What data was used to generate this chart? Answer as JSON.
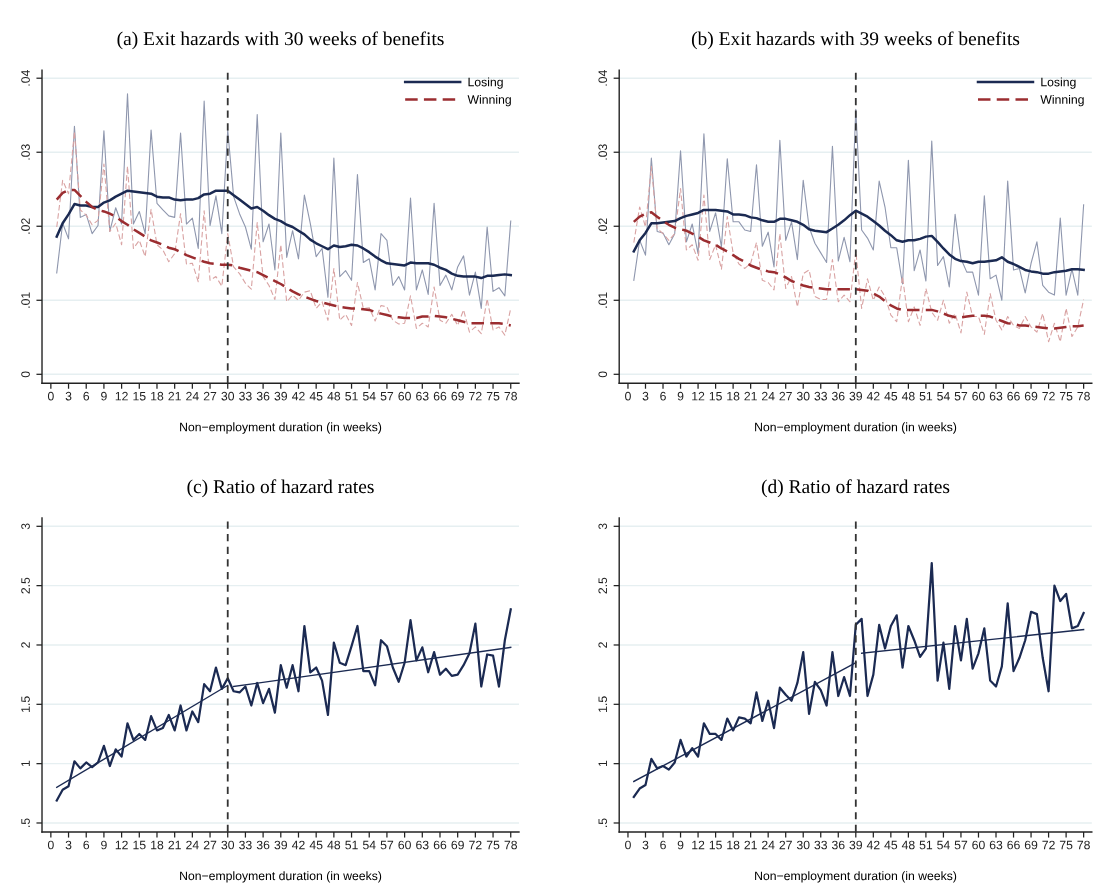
{
  "chart_data": [
    {
      "type": "line",
      "title": "(a) Exit hazards with 30 weeks of benefits",
      "xlabel": "Non−employment duration (in weeks)",
      "x": [
        1,
        2,
        3,
        4,
        5,
        6,
        7,
        8,
        9,
        10,
        11,
        12,
        13,
        14,
        15,
        16,
        17,
        18,
        19,
        20,
        21,
        22,
        23,
        24,
        25,
        26,
        27,
        28,
        29,
        30,
        31,
        32,
        33,
        34,
        35,
        36,
        37,
        38,
        39,
        40,
        41,
        42,
        43,
        44,
        45,
        46,
        47,
        48,
        49,
        50,
        51,
        52,
        53,
        54,
        55,
        56,
        57,
        58,
        59,
        60,
        61,
        62,
        63,
        64,
        65,
        66,
        67,
        68,
        69,
        70,
        71,
        72,
        73,
        74,
        75,
        76,
        77,
        78
      ],
      "xlim": [
        -1.5,
        79.4
      ],
      "xticks": [
        0,
        3,
        6,
        9,
        12,
        15,
        18,
        21,
        24,
        27,
        30,
        33,
        36,
        39,
        42,
        45,
        48,
        51,
        54,
        57,
        60,
        63,
        66,
        69,
        72,
        75,
        78
      ],
      "ylim": [
        -0.0012,
        0.0411
      ],
      "yticks": [
        0,
        {
          "value": 0.01,
          "label": ".01"
        },
        {
          "value": 0.02,
          "label": ".02"
        },
        {
          "value": 0.03,
          "label": ".03"
        },
        {
          "value": 0.04,
          "label": ".04"
        }
      ],
      "grid": "y",
      "legend": "top right",
      "ref_lines": [
        {
          "axis": "x",
          "value": 30,
          "color": "#333333",
          "line_style": "dashed"
        }
      ],
      "series": [
        {
          "color": "#8f97ae",
          "line_style": "solid",
          "values": [
            0.0137,
            0.0204,
            0.0183,
            0.0335,
            0.0212,
            0.0216,
            0.019,
            0.0201,
            0.0329,
            0.0193,
            0.0225,
            0.0203,
            0.0379,
            0.0203,
            0.022,
            0.019,
            0.033,
            0.0231,
            0.0222,
            0.0214,
            0.0212,
            0.0326,
            0.0203,
            0.0211,
            0.017,
            0.0369,
            0.0201,
            0.0241,
            0.019,
            0.033,
            0.024,
            0.0217,
            0.0199,
            0.0169,
            0.0351,
            0.0179,
            0.0203,
            0.0141,
            0.0326,
            0.0158,
            0.0194,
            0.0156,
            0.0242,
            0.0204,
            0.0159,
            0.017,
            0.0104,
            0.0292,
            0.0132,
            0.014,
            0.0127,
            0.027,
            0.0151,
            0.0156,
            0.0114,
            0.019,
            0.0181,
            0.012,
            0.0132,
            0.0114,
            0.0238,
            0.0114,
            0.0141,
            0.0108,
            0.0231,
            0.012,
            0.0134,
            0.0114,
            0.0145,
            0.016,
            0.0107,
            0.0138,
            0.0089,
            0.0199,
            0.0112,
            0.0117,
            0.0106,
            0.0207
          ]
        },
        {
          "color": "#d9a3a3",
          "line_style": "dashed",
          "values": [
            0.0199,
            0.0262,
            0.0244,
            0.0328,
            0.0222,
            0.0215,
            0.0202,
            0.0208,
            0.0284,
            0.0193,
            0.0204,
            0.0175,
            0.0281,
            0.017,
            0.0181,
            0.0159,
            0.0223,
            0.0175,
            0.0168,
            0.0152,
            0.0163,
            0.0217,
            0.0149,
            0.015,
            0.0125,
            0.0221,
            0.0127,
            0.0132,
            0.0119,
            0.019,
            0.0145,
            0.0136,
            0.0123,
            0.0115,
            0.0205,
            0.0132,
            0.012,
            0.0101,
            0.0175,
            0.0098,
            0.0107,
            0.01,
            0.0111,
            0.0113,
            0.0089,
            0.0098,
            0.0073,
            0.0143,
            0.0073,
            0.0081,
            0.0066,
            0.0124,
            0.0089,
            0.009,
            0.0072,
            0.0093,
            0.0091,
            0.0073,
            0.0068,
            0.0069,
            0.0106,
            0.0062,
            0.0069,
            0.0064,
            0.0118,
            0.0073,
            0.0069,
            0.0081,
            0.0066,
            0.0087,
            0.0057,
            0.0064,
            0.0055,
            0.0102,
            0.006,
            0.0064,
            0.0053,
            0.0089
          ]
        },
        {
          "name": "Losing",
          "color": "#1b2a52",
          "line_style": "solid",
          "values": [
            0.0186,
            0.0204,
            0.0216,
            0.023,
            0.0228,
            0.0228,
            0.0226,
            0.0226,
            0.0232,
            0.0235,
            0.024,
            0.0244,
            0.0248,
            0.0247,
            0.0246,
            0.0245,
            0.0244,
            0.024,
            0.0239,
            0.0239,
            0.0236,
            0.0235,
            0.0236,
            0.0236,
            0.0238,
            0.0243,
            0.0244,
            0.0248,
            0.0248,
            0.0248,
            0.0242,
            0.0236,
            0.023,
            0.0224,
            0.0226,
            0.0221,
            0.0215,
            0.021,
            0.0207,
            0.0202,
            0.0199,
            0.0194,
            0.0189,
            0.0182,
            0.0177,
            0.0173,
            0.0169,
            0.0174,
            0.0172,
            0.0173,
            0.0175,
            0.0174,
            0.017,
            0.0165,
            0.0159,
            0.0154,
            0.015,
            0.0149,
            0.0148,
            0.0147,
            0.0151,
            0.015,
            0.015,
            0.015,
            0.0148,
            0.0144,
            0.0141,
            0.0136,
            0.0133,
            0.0132,
            0.0132,
            0.0132,
            0.013,
            0.0133,
            0.0133,
            0.0134,
            0.0135,
            0.0134
          ]
        },
        {
          "name": "Winning",
          "color": "#9b2d30",
          "line_style": "dashed",
          "values": [
            0.0236,
            0.0245,
            0.0249,
            0.0249,
            0.0241,
            0.0233,
            0.0226,
            0.0222,
            0.022,
            0.0217,
            0.0213,
            0.0207,
            0.0202,
            0.0196,
            0.0191,
            0.0186,
            0.0181,
            0.0178,
            0.0175,
            0.0171,
            0.0169,
            0.0165,
            0.0161,
            0.0158,
            0.0155,
            0.0152,
            0.015,
            0.0149,
            0.0148,
            0.0148,
            0.0147,
            0.0144,
            0.0142,
            0.014,
            0.0138,
            0.0134,
            0.013,
            0.0126,
            0.0122,
            0.0117,
            0.0112,
            0.0108,
            0.0105,
            0.0102,
            0.0099,
            0.0097,
            0.0095,
            0.0093,
            0.0091,
            0.009,
            0.0089,
            0.0089,
            0.0088,
            0.0087,
            0.0084,
            0.0082,
            0.008,
            0.0078,
            0.0077,
            0.0076,
            0.0076,
            0.0076,
            0.0078,
            0.0078,
            0.0079,
            0.0078,
            0.0077,
            0.0075,
            0.0073,
            0.0071,
            0.0069,
            0.0069,
            0.0069,
            0.0069,
            0.0069,
            0.0069,
            0.0068,
            0.0066
          ]
        }
      ]
    },
    {
      "type": "line",
      "title": "(b) Exit hazards with 39 weeks of benefits",
      "xlabel": "Non−employment duration (in weeks)",
      "x": [
        1,
        2,
        3,
        4,
        5,
        6,
        7,
        8,
        9,
        10,
        11,
        12,
        13,
        14,
        15,
        16,
        17,
        18,
        19,
        20,
        21,
        22,
        23,
        24,
        25,
        26,
        27,
        28,
        29,
        30,
        31,
        32,
        33,
        34,
        35,
        36,
        37,
        38,
        39,
        40,
        41,
        42,
        43,
        44,
        45,
        46,
        47,
        48,
        49,
        50,
        51,
        52,
        53,
        54,
        55,
        56,
        57,
        58,
        59,
        60,
        61,
        62,
        63,
        64,
        65,
        66,
        67,
        68,
        69,
        70,
        71,
        72,
        73,
        74,
        75,
        76,
        77,
        78
      ],
      "xlim": [
        -1.5,
        79.4
      ],
      "xticks": [
        0,
        3,
        6,
        9,
        12,
        15,
        18,
        21,
        24,
        27,
        30,
        33,
        36,
        39,
        42,
        45,
        48,
        51,
        54,
        57,
        60,
        63,
        66,
        69,
        72,
        75,
        78
      ],
      "ylim": [
        -0.0012,
        0.0411
      ],
      "yticks": [
        0,
        {
          "value": 0.01,
          "label": ".01"
        },
        {
          "value": 0.02,
          "label": ".02"
        },
        {
          "value": 0.03,
          "label": ".03"
        },
        {
          "value": 0.04,
          "label": ".04"
        }
      ],
      "grid": "y",
      "legend": "top right",
      "ref_lines": [
        {
          "axis": "x",
          "value": 39,
          "color": "#333333",
          "line_style": "dashed"
        }
      ],
      "series": [
        {
          "color": "#8f97ae",
          "line_style": "solid",
          "values": [
            0.0127,
            0.0181,
            0.0161,
            0.0292,
            0.0193,
            0.0191,
            0.0175,
            0.019,
            0.0302,
            0.0179,
            0.0203,
            0.0163,
            0.0325,
            0.0193,
            0.0218,
            0.0172,
            0.0291,
            0.0206,
            0.0206,
            0.0195,
            0.0193,
            0.0283,
            0.0173,
            0.0192,
            0.0145,
            0.0316,
            0.0181,
            0.0206,
            0.0155,
            0.0262,
            0.0199,
            0.0177,
            0.0164,
            0.0151,
            0.0308,
            0.0153,
            0.0185,
            0.0152,
            0.0358,
            0.0195,
            0.0184,
            0.0168,
            0.0261,
            0.0226,
            0.0171,
            0.0171,
            0.0122,
            0.0289,
            0.014,
            0.0168,
            0.0126,
            0.0315,
            0.0147,
            0.0159,
            0.0118,
            0.0216,
            0.0156,
            0.0138,
            0.0138,
            0.0107,
            0.0241,
            0.0129,
            0.0134,
            0.01,
            0.0261,
            0.0141,
            0.0143,
            0.011,
            0.015,
            0.0179,
            0.012,
            0.0111,
            0.0107,
            0.0211,
            0.0107,
            0.0142,
            0.0107,
            0.0229
          ]
        },
        {
          "color": "#d9a3a3",
          "line_style": "dashed",
          "values": [
            0.0178,
            0.0226,
            0.0199,
            0.0281,
            0.0197,
            0.019,
            0.0181,
            0.019,
            0.0251,
            0.0168,
            0.0175,
            0.0154,
            0.0242,
            0.0155,
            0.0175,
            0.0142,
            0.0213,
            0.0164,
            0.0149,
            0.0143,
            0.015,
            0.0178,
            0.0127,
            0.0124,
            0.0114,
            0.019,
            0.0116,
            0.0132,
            0.0091,
            0.0136,
            0.0141,
            0.0105,
            0.0101,
            0.0101,
            0.0155,
            0.0098,
            0.0107,
            0.0098,
            0.0166,
            0.0089,
            0.0129,
            0.01,
            0.0118,
            0.0105,
            0.008,
            0.0071,
            0.0132,
            0.0071,
            0.0091,
            0.0066,
            0.0116,
            0.0084,
            0.0073,
            0.01,
            0.0069,
            0.0082,
            0.0056,
            0.0111,
            0.0078,
            0.0078,
            0.0054,
            0.0109,
            0.0073,
            0.006,
            0.0078,
            0.0066,
            0.0062,
            0.0078,
            0.0064,
            0.0057,
            0.0082,
            0.0044,
            0.0069,
            0.0044,
            0.0089,
            0.0051,
            0.0064,
            0.0101
          ]
        },
        {
          "name": "Losing",
          "color": "#1b2a52",
          "line_style": "solid",
          "values": [
            0.0166,
            0.0181,
            0.0191,
            0.0204,
            0.0204,
            0.0205,
            0.0206,
            0.0207,
            0.0211,
            0.0214,
            0.0216,
            0.0218,
            0.0222,
            0.0222,
            0.0222,
            0.0221,
            0.022,
            0.0216,
            0.0216,
            0.0215,
            0.0212,
            0.0211,
            0.0208,
            0.0206,
            0.0206,
            0.021,
            0.021,
            0.0208,
            0.0206,
            0.0202,
            0.0196,
            0.0194,
            0.0193,
            0.0192,
            0.0197,
            0.0202,
            0.0208,
            0.0215,
            0.0221,
            0.0217,
            0.0213,
            0.0207,
            0.0201,
            0.0194,
            0.0188,
            0.0181,
            0.0179,
            0.0181,
            0.0181,
            0.0183,
            0.0186,
            0.0187,
            0.0179,
            0.017,
            0.0162,
            0.0156,
            0.0153,
            0.0152,
            0.015,
            0.0152,
            0.0152,
            0.0153,
            0.0154,
            0.0158,
            0.0152,
            0.0149,
            0.0145,
            0.0141,
            0.0139,
            0.0138,
            0.0136,
            0.0136,
            0.0138,
            0.0139,
            0.014,
            0.0142,
            0.0142,
            0.0141
          ]
        },
        {
          "name": "Winning",
          "color": "#9b2d30",
          "line_style": "dashed",
          "values": [
            0.0206,
            0.0213,
            0.0217,
            0.0219,
            0.0213,
            0.0207,
            0.0202,
            0.0198,
            0.0196,
            0.0194,
            0.019,
            0.0186,
            0.0181,
            0.0178,
            0.0175,
            0.017,
            0.0166,
            0.0161,
            0.0156,
            0.0152,
            0.0147,
            0.0144,
            0.0141,
            0.0139,
            0.0138,
            0.0135,
            0.0131,
            0.0126,
            0.0123,
            0.012,
            0.0118,
            0.0117,
            0.0116,
            0.0115,
            0.0115,
            0.0115,
            0.0115,
            0.0115,
            0.0115,
            0.0114,
            0.0113,
            0.0109,
            0.0105,
            0.0099,
            0.0093,
            0.0089,
            0.0087,
            0.0087,
            0.0087,
            0.0087,
            0.0087,
            0.0087,
            0.0085,
            0.0082,
            0.0079,
            0.0077,
            0.0077,
            0.0078,
            0.0079,
            0.0079,
            0.0079,
            0.0078,
            0.0075,
            0.0072,
            0.0069,
            0.0068,
            0.0066,
            0.0066,
            0.0065,
            0.0064,
            0.0063,
            0.0062,
            0.0062,
            0.0063,
            0.0064,
            0.0065,
            0.0065,
            0.0066
          ]
        }
      ]
    },
    {
      "type": "line",
      "title": "(c) Ratio of hazard rates",
      "xlabel": "Non−employment duration (in weeks)",
      "x": [
        1,
        2,
        3,
        4,
        5,
        6,
        7,
        8,
        9,
        10,
        11,
        12,
        13,
        14,
        15,
        16,
        17,
        18,
        19,
        20,
        21,
        22,
        23,
        24,
        25,
        26,
        27,
        28,
        29,
        30,
        31,
        32,
        33,
        34,
        35,
        36,
        37,
        38,
        39,
        40,
        41,
        42,
        43,
        44,
        45,
        46,
        47,
        48,
        49,
        50,
        51,
        52,
        53,
        54,
        55,
        56,
        57,
        58,
        59,
        60,
        61,
        62,
        63,
        64,
        65,
        66,
        67,
        68,
        69,
        70,
        71,
        72,
        73,
        74,
        75,
        76,
        77,
        78
      ],
      "xlim": [
        -1.5,
        79.4
      ],
      "xticks": [
        0,
        3,
        6,
        9,
        12,
        15,
        18,
        21,
        24,
        27,
        30,
        33,
        36,
        39,
        42,
        45,
        48,
        51,
        54,
        57,
        60,
        63,
        66,
        69,
        72,
        75,
        78
      ],
      "ylim": [
        0.424,
        3.07
      ],
      "yticks": [
        {
          "value": 0.5,
          "label": ".5"
        },
        1,
        1.5,
        2,
        2.5,
        3
      ],
      "grid": "y",
      "ref_lines": [
        {
          "axis": "x",
          "value": 30,
          "color": "#333333",
          "line_style": "dashed"
        }
      ],
      "series": [
        {
          "color": "#1b2a52",
          "line_style": "solid",
          "values": [
            0.69,
            0.78,
            0.81,
            1.02,
            0.96,
            1.01,
            0.97,
            1.01,
            1.15,
            0.98,
            1.12,
            1.06,
            1.34,
            1.2,
            1.25,
            1.2,
            1.4,
            1.28,
            1.3,
            1.41,
            1.28,
            1.49,
            1.28,
            1.44,
            1.35,
            1.67,
            1.61,
            1.81,
            1.63,
            1.72,
            1.61,
            1.6,
            1.65,
            1.49,
            1.68,
            1.51,
            1.63,
            1.43,
            1.83,
            1.64,
            1.83,
            1.61,
            2.16,
            1.77,
            1.81,
            1.7,
            1.41,
            2.02,
            1.85,
            1.83,
            1.99,
            2.16,
            1.78,
            1.78,
            1.66,
            2.04,
            1.99,
            1.81,
            1.69,
            1.85,
            2.21,
            1.87,
            1.98,
            1.77,
            1.94,
            1.75,
            1.8,
            1.74,
            1.75,
            1.83,
            1.93,
            2.18,
            1.65,
            1.92,
            1.91,
            1.65,
            2.04,
            2.3
          ]
        },
        {
          "color": "#1b2a52",
          "line_style": "solid",
          "type": "line",
          "x": [
            1,
            30
          ],
          "values": [
            0.8,
            1.66
          ]
        },
        {
          "color": "#1b2a52",
          "line_style": "solid",
          "type": "line",
          "x": [
            31,
            78
          ],
          "values": [
            1.65,
            1.98
          ]
        }
      ]
    },
    {
      "type": "line",
      "title": "(d) Ratio of hazard rates",
      "xlabel": "Non−employment duration (in weeks)",
      "x": [
        1,
        2,
        3,
        4,
        5,
        6,
        7,
        8,
        9,
        10,
        11,
        12,
        13,
        14,
        15,
        16,
        17,
        18,
        19,
        20,
        21,
        22,
        23,
        24,
        25,
        26,
        27,
        28,
        29,
        30,
        31,
        32,
        33,
        34,
        35,
        36,
        37,
        38,
        39,
        40,
        41,
        42,
        43,
        44,
        45,
        46,
        47,
        48,
        49,
        50,
        51,
        52,
        53,
        54,
        55,
        56,
        57,
        58,
        59,
        60,
        61,
        62,
        63,
        64,
        65,
        66,
        67,
        68,
        69,
        70,
        71,
        72,
        73,
        74,
        75,
        76,
        77,
        78
      ],
      "xlim": [
        -1.5,
        79.4
      ],
      "xticks": [
        0,
        3,
        6,
        9,
        12,
        15,
        18,
        21,
        24,
        27,
        30,
        33,
        36,
        39,
        42,
        45,
        48,
        51,
        54,
        57,
        60,
        63,
        66,
        69,
        72,
        75,
        78
      ],
      "ylim": [
        0.424,
        3.07
      ],
      "yticks": [
        {
          "value": 0.5,
          "label": ".5"
        },
        1,
        1.5,
        2,
        2.5,
        3
      ],
      "grid": "y",
      "ref_lines": [
        {
          "axis": "x",
          "value": 39,
          "color": "#333333",
          "line_style": "dashed"
        }
      ],
      "series": [
        {
          "color": "#1b2a52",
          "line_style": "solid",
          "values": [
            0.72,
            0.79,
            0.82,
            1.04,
            0.96,
            0.98,
            0.95,
            1.01,
            1.2,
            1.06,
            1.13,
            1.06,
            1.34,
            1.25,
            1.25,
            1.2,
            1.38,
            1.28,
            1.39,
            1.38,
            1.34,
            1.6,
            1.36,
            1.53,
            1.3,
            1.64,
            1.58,
            1.53,
            1.68,
            1.94,
            1.42,
            1.69,
            1.62,
            1.49,
            1.94,
            1.57,
            1.73,
            1.57,
            2.17,
            2.22,
            1.57,
            1.75,
            2.17,
            1.97,
            2.16,
            2.25,
            1.81,
            2.16,
            2.04,
            1.9,
            1.97,
            2.69,
            1.7,
            2.02,
            1.63,
            2.16,
            1.87,
            2.22,
            1.8,
            1.93,
            2.14,
            1.7,
            1.65,
            1.82,
            2.35,
            1.78,
            1.89,
            2.04,
            2.28,
            2.26,
            1.89,
            1.61,
            2.5,
            2.37,
            2.43,
            2.14,
            2.16,
            2.27
          ]
        },
        {
          "color": "#1b2a52",
          "line_style": "solid",
          "type": "line",
          "x": [
            1,
            39
          ],
          "values": [
            0.85,
            1.85
          ]
        },
        {
          "color": "#1b2a52",
          "line_style": "solid",
          "type": "line",
          "x": [
            40,
            78
          ],
          "values": [
            1.93,
            2.13
          ]
        }
      ]
    }
  ]
}
